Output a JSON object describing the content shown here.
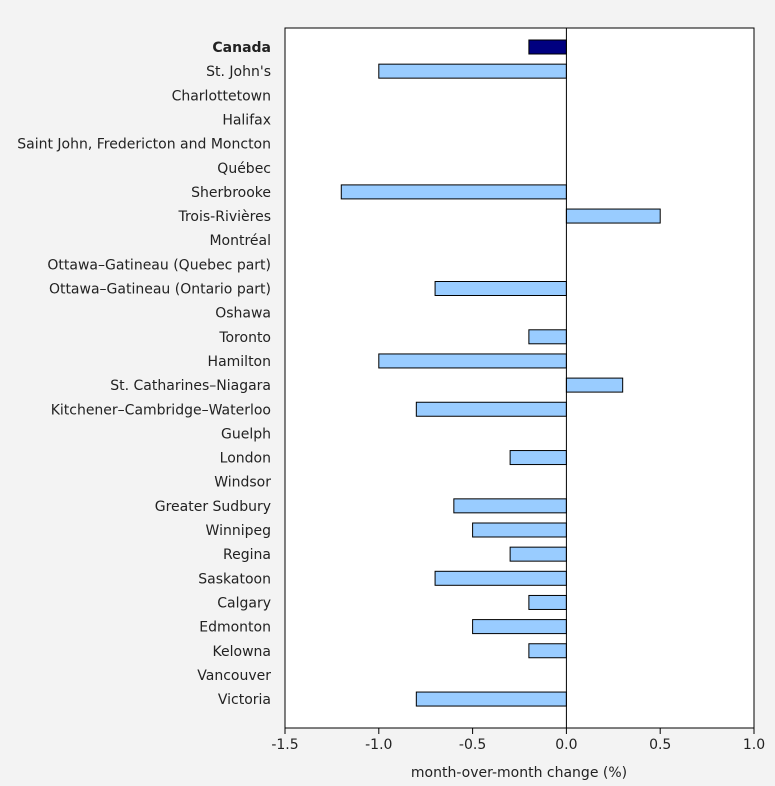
{
  "chart_data": {
    "type": "bar",
    "orientation": "horizontal",
    "xlabel": "month-over-month change (%)",
    "xlim": [
      -1.5,
      1.0
    ],
    "xticks": [
      -1.5,
      -1.0,
      -0.5,
      0.0,
      0.5,
      1.0
    ],
    "xtick_labels": [
      "-1.5",
      "-1.0",
      "-0.5",
      "0.0",
      "0.5",
      "1.0"
    ],
    "grid": false,
    "colors": {
      "highlight": "#000080",
      "default": "#99ccff",
      "border": "#000000"
    },
    "categories": [
      "Canada",
      "St. John's",
      "Charlottetown",
      "Halifax",
      "Saint John, Fredericton and Moncton",
      "Québec",
      "Sherbrooke",
      "Trois-Rivières",
      "Montréal",
      "Ottawa–Gatineau (Quebec part)",
      "Ottawa–Gatineau (Ontario part)",
      "Oshawa",
      "Toronto",
      "Hamilton",
      "St. Catharines–Niagara",
      "Kitchener–Cambridge–Waterloo",
      "Guelph",
      "London",
      "Windsor",
      "Greater Sudbury",
      "Winnipeg",
      "Regina",
      "Saskatoon",
      "Calgary",
      "Edmonton",
      "Kelowna",
      "Vancouver",
      "Victoria"
    ],
    "values": [
      -0.2,
      -1.0,
      0.0,
      0.0,
      0.0,
      0.0,
      -1.2,
      0.5,
      0.0,
      0.0,
      -0.7,
      0.0,
      -0.2,
      -1.0,
      0.3,
      -0.8,
      0.0,
      -0.3,
      0.0,
      -0.6,
      -0.5,
      -0.3,
      -0.7,
      -0.2,
      -0.5,
      -0.2,
      0.0,
      -0.8
    ],
    "highlight_index": 0
  }
}
